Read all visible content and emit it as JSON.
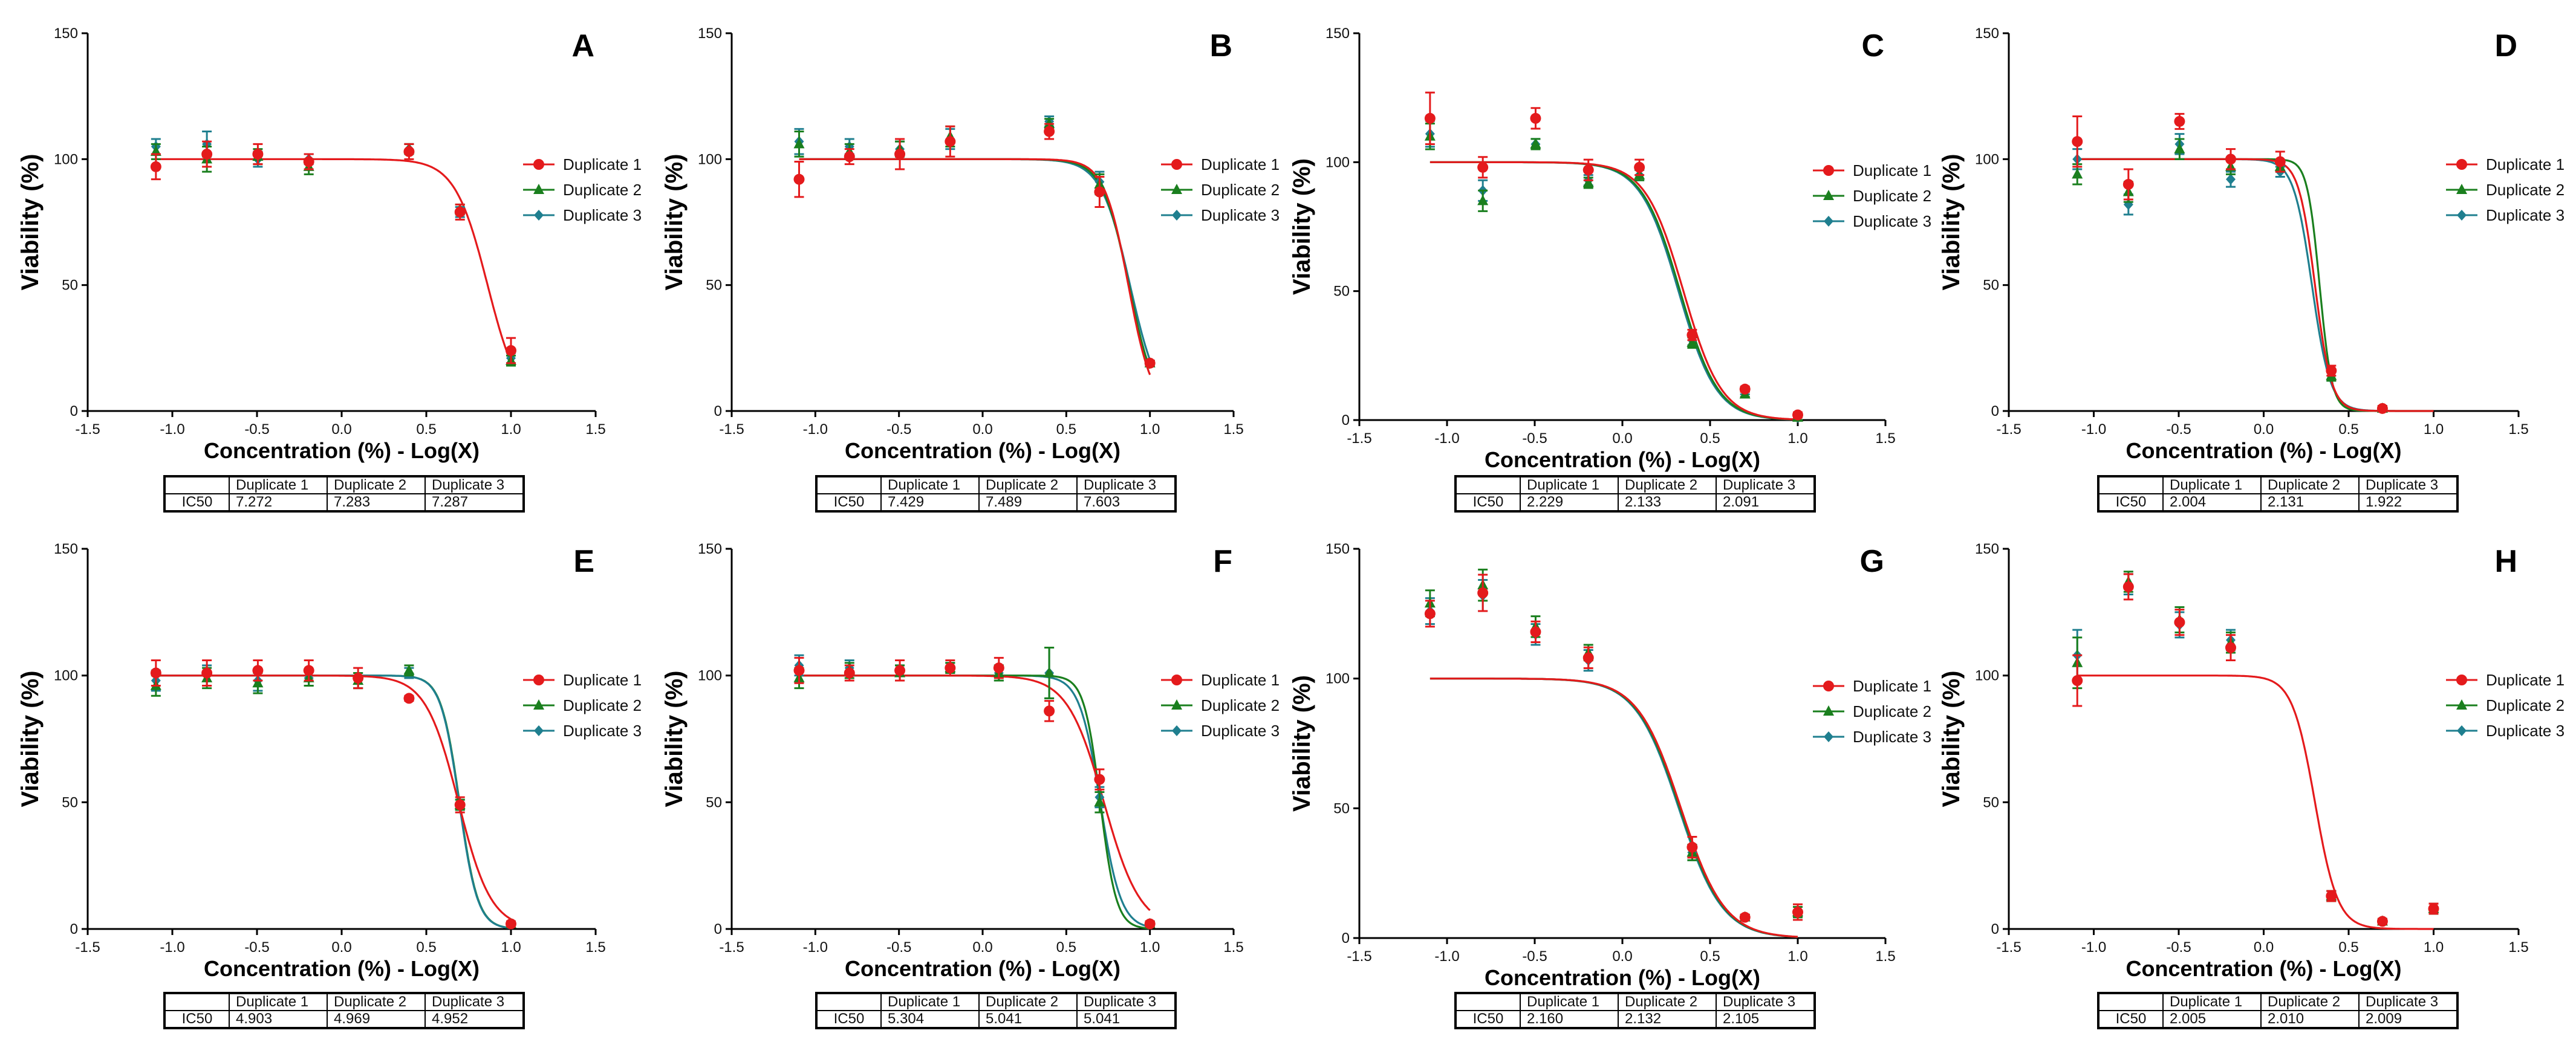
{
  "colors": {
    "duplicate1": "#e41a1c",
    "duplicate2": "#1a7f1e",
    "duplicate3": "#1f7f8f",
    "axis": "#000000"
  },
  "chart_data": [
    {
      "type": "scatter",
      "panel": "A",
      "xlabel": "Concentration (%) - Log(X)",
      "ylabel": "Viability (%)",
      "xlim": [
        -1.5,
        1.5
      ],
      "ylim": [
        0,
        150
      ],
      "xticks": [
        "-1.5",
        "-1.0",
        "-0.5",
        "0.0",
        "0.5",
        "1.0",
        "1.5"
      ],
      "yticks": [
        "0",
        "50",
        "100",
        "150"
      ],
      "legend_position": "right",
      "x": [
        -1.097,
        -0.796,
        -0.495,
        -0.194,
        0.398,
        0.699,
        1.0
      ],
      "series": [
        {
          "name": "Duplicate 1",
          "values": [
            97,
            102,
            102,
            99,
            103,
            79,
            24
          ],
          "err": [
            5,
            5,
            4,
            3,
            3,
            3,
            5
          ]
        },
        {
          "name": "Duplicate 2",
          "values": [
            103,
            100,
            101,
            97,
            104,
            80,
            20
          ],
          "err": [
            3,
            5,
            3,
            3,
            2,
            2,
            2
          ]
        },
        {
          "name": "Duplicate 3",
          "values": [
            105,
            106,
            100,
            100,
            104,
            79,
            21
          ],
          "err": [
            3,
            5,
            3,
            2,
            2,
            2,
            2
          ]
        }
      ],
      "fits": [
        {
          "name": "Duplicate 1",
          "top": 100,
          "logIC50": 0.862,
          "hill": -4.5
        }
      ],
      "table": {
        "row_label": "IC50",
        "headers": [
          "Duplicate 1",
          "Duplicate 2",
          "Duplicate 3"
        ],
        "values": [
          "7.272",
          "7.283",
          "7.287"
        ]
      }
    },
    {
      "type": "scatter",
      "panel": "B",
      "xlabel": "Concentration (%) - Log(X)",
      "ylabel": "Viability (%)",
      "xlim": [
        -1.5,
        1.5
      ],
      "ylim": [
        0,
        150
      ],
      "xticks": [
        "-1.5",
        "-1.0",
        "-0.5",
        "0.0",
        "0.5",
        "1.0",
        "1.5"
      ],
      "yticks": [
        "0",
        "50",
        "100",
        "150"
      ],
      "legend_position": "right",
      "x": [
        -1.097,
        -0.796,
        -0.495,
        -0.194,
        0.398,
        0.699,
        1.0
      ],
      "series": [
        {
          "name": "Duplicate 1",
          "values": [
            92,
            101,
            102,
            107,
            111,
            87,
            19
          ],
          "err": [
            7,
            3,
            6,
            6,
            3,
            6,
            1
          ]
        },
        {
          "name": "Duplicate 2",
          "values": [
            106,
            103,
            104,
            109,
            114,
            90,
            19
          ],
          "err": [
            5,
            3,
            3,
            4,
            2,
            4,
            1
          ]
        },
        {
          "name": "Duplicate 3",
          "values": [
            107,
            105,
            104,
            108,
            115,
            91,
            19
          ],
          "err": [
            5,
            3,
            3,
            4,
            2,
            4,
            1
          ]
        }
      ],
      "fits": [
        {
          "name": "Duplicate 3",
          "top": 100,
          "logIC50": 0.881,
          "hill": -5.0
        },
        {
          "name": "Duplicate 2",
          "top": 100,
          "logIC50": 0.874,
          "hill": -5.5
        },
        {
          "name": "Duplicate 1",
          "top": 100,
          "logIC50": 0.871,
          "hill": -6.0
        }
      ],
      "table": {
        "row_label": "IC50",
        "headers": [
          "Duplicate 1",
          "Duplicate 2",
          "Duplicate 3"
        ],
        "values": [
          "7.429",
          "7.489",
          "7.603"
        ]
      }
    },
    {
      "type": "scatter",
      "panel": "C",
      "xlabel": "Concentration (%) - Log(X)",
      "ylabel": "Viability (%)",
      "xlim": [
        -1.5,
        1.5
      ],
      "ylim": [
        0,
        150
      ],
      "xticks": [
        "-1.5",
        "-1.0",
        "-0.5",
        "0.0",
        "0.5",
        "1.0",
        "1.5"
      ],
      "yticks": [
        "0",
        "50",
        "100",
        "150"
      ],
      "legend_position": "right",
      "x": [
        -1.097,
        -0.796,
        -0.495,
        -0.194,
        0.097,
        0.398,
        0.699,
        1.0
      ],
      "series": [
        {
          "name": "Duplicate 1",
          "values": [
            117,
            98,
            117,
            97,
            98,
            33,
            12,
            2
          ],
          "err": [
            10,
            4,
            4,
            4,
            3,
            2,
            1,
            1
          ]
        },
        {
          "name": "Duplicate 2",
          "values": [
            110,
            85,
            107,
            92,
            95,
            30,
            10,
            1
          ],
          "err": [
            5,
            4,
            2,
            2,
            2,
            2,
            1,
            1
          ]
        },
        {
          "name": "Duplicate 3",
          "values": [
            111,
            89,
            107,
            93,
            95,
            31,
            11,
            1
          ],
          "err": [
            5,
            4,
            2,
            2,
            2,
            2,
            1,
            1
          ]
        }
      ],
      "fits": [
        {
          "name": "Duplicate 3",
          "top": 100,
          "logIC50": 0.32,
          "hill": -4.0
        },
        {
          "name": "Duplicate 2",
          "top": 100,
          "logIC50": 0.329,
          "hill": -4.0
        },
        {
          "name": "Duplicate 1",
          "top": 100,
          "logIC50": 0.348,
          "hill": -4.0
        }
      ],
      "table": {
        "row_label": "IC50",
        "headers": [
          "Duplicate 1",
          "Duplicate 2",
          "Duplicate 3"
        ],
        "values": [
          "2.229",
          "2.133",
          "2.091"
        ]
      }
    },
    {
      "type": "scatter",
      "panel": "D",
      "xlabel": "Concentration (%) - Log(X)",
      "ylabel": "Viability (%)",
      "xlim": [
        -1.5,
        1.5
      ],
      "ylim": [
        0,
        150
      ],
      "xticks": [
        "-1.5",
        "-1.0",
        "-0.5",
        "0.0",
        "0.5",
        "1.0",
        "1.5"
      ],
      "yticks": [
        "0",
        "50",
        "100",
        "150"
      ],
      "legend_position": "right",
      "x": [
        -1.097,
        -0.796,
        -0.495,
        -0.194,
        0.097,
        0.398,
        0.699
      ],
      "series": [
        {
          "name": "Duplicate 1",
          "values": [
            107,
            90,
            115,
            100,
            99,
            16,
            1
          ],
          "err": [
            10,
            6,
            3,
            4,
            4,
            2,
            1
          ]
        },
        {
          "name": "Duplicate 2",
          "values": [
            94,
            87,
            104,
            97,
            97,
            14,
            1
          ],
          "err": [
            4,
            4,
            4,
            3,
            2,
            2,
            1
          ]
        },
        {
          "name": "Duplicate 3",
          "values": [
            100,
            82,
            106,
            92,
            95,
            14,
            1
          ],
          "err": [
            4,
            4,
            4,
            3,
            2,
            2,
            1
          ]
        }
      ],
      "fits": [
        {
          "name": "Duplicate 3",
          "top": 100,
          "logIC50": 0.284,
          "hill": -8.0
        },
        {
          "name": "Duplicate 2",
          "top": 100,
          "logIC50": 0.329,
          "hill": -12.0
        },
        {
          "name": "Duplicate 1",
          "top": 100,
          "logIC50": 0.302,
          "hill": -9.0
        }
      ],
      "table": {
        "row_label": "IC50",
        "headers": [
          "Duplicate 1",
          "Duplicate 2",
          "Duplicate 3"
        ],
        "values": [
          "2.004",
          "2.131",
          "1.922"
        ]
      }
    },
    {
      "type": "scatter",
      "panel": "E",
      "xlabel": "Concentration (%) - Log(X)",
      "ylabel": "Viability (%)",
      "xlim": [
        -1.5,
        1.5
      ],
      "ylim": [
        0,
        150
      ],
      "xticks": [
        "-1.5",
        "-1.0",
        "-0.5",
        "0.0",
        "0.5",
        "1.0",
        "1.5"
      ],
      "yticks": [
        "0",
        "50",
        "100",
        "150"
      ],
      "legend_position": "right",
      "x": [
        -1.097,
        -0.796,
        -0.495,
        -0.194,
        0.097,
        0.398,
        0.699,
        1.0
      ],
      "series": [
        {
          "name": "Duplicate 1",
          "values": [
            101,
            101,
            102,
            102,
            99,
            91,
            49,
            2
          ],
          "err": [
            5,
            5,
            4,
            4,
            4,
            1,
            3,
            1
          ]
        },
        {
          "name": "Duplicate 2",
          "values": [
            96,
            99,
            97,
            99,
            98,
            102,
            49,
            2
          ],
          "err": [
            4,
            4,
            4,
            3,
            3,
            2,
            2,
            1
          ]
        },
        {
          "name": "Duplicate 3",
          "values": [
            98,
            100,
            98,
            99,
            98,
            101,
            49,
            2
          ],
          "err": [
            4,
            4,
            4,
            3,
            3,
            2,
            2,
            1
          ]
        }
      ],
      "fits": [
        {
          "name": "Duplicate 2",
          "top": 100,
          "logIC50": 0.696,
          "hill": -8.0
        },
        {
          "name": "Duplicate 3",
          "top": 100,
          "logIC50": 0.694,
          "hill": -8.0
        },
        {
          "name": "Duplicate 1",
          "top": 100,
          "logIC50": 0.69,
          "hill": -4.5
        }
      ],
      "table": {
        "row_label": "IC50",
        "headers": [
          "Duplicate 1",
          "Duplicate 2",
          "Duplicate 3"
        ],
        "values": [
          "4.903",
          "4.969",
          "4.952"
        ]
      }
    },
    {
      "type": "scatter",
      "panel": "F",
      "xlabel": "Concentration (%) - Log(X)",
      "ylabel": "Viability (%)",
      "xlim": [
        -1.5,
        1.5
      ],
      "ylim": [
        0,
        150
      ],
      "xticks": [
        "-1.5",
        "-1.0",
        "-0.5",
        "0.0",
        "0.5",
        "1.0",
        "1.5"
      ],
      "yticks": [
        "0",
        "50",
        "100",
        "150"
      ],
      "legend_position": "right",
      "x": [
        -1.097,
        -0.796,
        -0.495,
        -0.194,
        0.097,
        0.398,
        0.699,
        1.0
      ],
      "series": [
        {
          "name": "Duplicate 1",
          "values": [
            102,
            101,
            102,
            103,
            103,
            86,
            59,
            2
          ],
          "err": [
            5,
            3,
            4,
            3,
            4,
            4,
            4,
            1
          ]
        },
        {
          "name": "Duplicate 2",
          "values": [
            99,
            102,
            101,
            103,
            101,
            101,
            50,
            2
          ],
          "err": [
            4,
            3,
            3,
            2,
            3,
            10,
            4,
            1
          ]
        },
        {
          "name": "Duplicate 3",
          "values": [
            104,
            103,
            101,
            103,
            101,
            101,
            52,
            2
          ],
          "err": [
            4,
            3,
            3,
            2,
            3,
            10,
            4,
            1
          ]
        }
      ],
      "fits": [
        {
          "name": "Duplicate 3",
          "top": 100,
          "logIC50": 0.703,
          "hill": -7.0
        },
        {
          "name": "Duplicate 2",
          "top": 100,
          "logIC50": 0.703,
          "hill": -9.0
        },
        {
          "name": "Duplicate 1",
          "top": 100,
          "logIC50": 0.725,
          "hill": -4.0
        }
      ],
      "table": {
        "row_label": "IC50",
        "headers": [
          "Duplicate 1",
          "Duplicate 2",
          "Duplicate 3"
        ],
        "values": [
          "5.304",
          "5.041",
          "5.041"
        ]
      }
    },
    {
      "type": "scatter",
      "panel": "G",
      "xlabel": "Concentration (%) - Log(X)",
      "ylabel": "Viability (%)",
      "xlim": [
        -1.5,
        1.5
      ],
      "ylim": [
        0,
        150
      ],
      "xticks": [
        "-1.5",
        "-1.0",
        "-0.5",
        "0.0",
        "0.5",
        "1.0",
        "1.5"
      ],
      "yticks": [
        "0",
        "50",
        "100",
        "150"
      ],
      "legend_position": "right",
      "x": [
        -1.097,
        -0.796,
        -0.495,
        -0.194,
        0.398,
        0.699,
        1.0
      ],
      "series": [
        {
          "name": "Duplicate 1",
          "values": [
            125,
            133,
            118,
            108,
            35,
            8,
            10
          ],
          "err": [
            5,
            7,
            4,
            4,
            4,
            1,
            3
          ]
        },
        {
          "name": "Duplicate 2",
          "values": [
            129,
            136,
            120,
            110,
            33,
            8,
            10
          ],
          "err": [
            5,
            6,
            4,
            3,
            3,
            1,
            2
          ]
        },
        {
          "name": "Duplicate 3",
          "values": [
            126,
            132,
            117,
            107,
            33,
            8,
            10
          ],
          "err": [
            5,
            6,
            4,
            4,
            3,
            1,
            2
          ]
        }
      ],
      "fits": [
        {
          "name": "Duplicate 3",
          "top": 100,
          "logIC50": 0.322,
          "hill": -3.5
        },
        {
          "name": "Duplicate 2",
          "top": 100,
          "logIC50": 0.329,
          "hill": -3.5
        },
        {
          "name": "Duplicate 1",
          "top": 100,
          "logIC50": 0.334,
          "hill": -3.5
        }
      ],
      "table": {
        "row_label": "IC50",
        "headers": [
          "Duplicate 1",
          "Duplicate 2",
          "Duplicate 3"
        ],
        "values": [
          "2.160",
          "2.132",
          "2.105"
        ]
      }
    },
    {
      "type": "scatter",
      "panel": "H",
      "xlabel": "Concentration (%) - Log(X)",
      "ylabel": "Viability (%)",
      "xlim": [
        -1.5,
        1.5
      ],
      "ylim": [
        0,
        150
      ],
      "xticks": [
        "-1.5",
        "-1.0",
        "-0.5",
        "0.0",
        "0.5",
        "1.0",
        "1.5"
      ],
      "yticks": [
        "0",
        "50",
        "100",
        "150"
      ],
      "legend_position": "right",
      "x": [
        -1.097,
        -0.796,
        -0.495,
        -0.194,
        0.398,
        0.699,
        1.0
      ],
      "series": [
        {
          "name": "Duplicate 1",
          "values": [
            98,
            135,
            121,
            111,
            13,
            3,
            8
          ],
          "err": [
            10,
            5,
            5,
            5,
            2,
            1,
            2
          ]
        },
        {
          "name": "Duplicate 2",
          "values": [
            105,
            137,
            122,
            113,
            13,
            3,
            8
          ],
          "err": [
            10,
            4,
            5,
            4,
            2,
            1,
            2
          ]
        },
        {
          "name": "Duplicate 3",
          "values": [
            108,
            136,
            120,
            114,
            13,
            3,
            8
          ],
          "err": [
            10,
            4,
            5,
            4,
            2,
            1,
            2
          ]
        }
      ],
      "fits": [
        {
          "name": "Duplicate 1",
          "top": 100,
          "logIC50": 0.302,
          "hill": -6.5
        }
      ],
      "table": {
        "row_label": "IC50",
        "headers": [
          "Duplicate 1",
          "Duplicate 2",
          "Duplicate 3"
        ],
        "values": [
          "2.005",
          "2.010",
          "2.009"
        ]
      }
    }
  ]
}
